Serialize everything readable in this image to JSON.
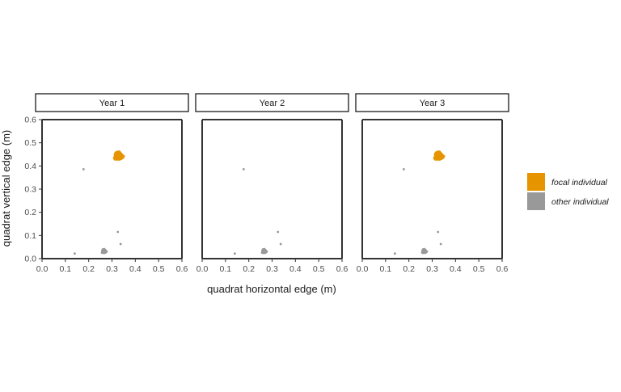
{
  "chart_data": {
    "type": "scatter",
    "panels": [
      "Year 1",
      "Year 2",
      "Year 3"
    ],
    "xlabel": "quadrat horizontal edge (m)",
    "ylabel": "quadrat vertical edge (m)",
    "xlim": [
      0,
      0.6
    ],
    "ylim": [
      0,
      0.6
    ],
    "xticks": [
      "0.0",
      "0.1",
      "0.2",
      "0.3",
      "0.4",
      "0.5",
      "0.6"
    ],
    "yticks": [
      "0.0",
      "0.1",
      "0.2",
      "0.3",
      "0.4",
      "0.5",
      "0.6"
    ],
    "grid": false,
    "legend_position": "right",
    "series": [
      {
        "name": "focal individual",
        "color": "#E69500",
        "points": [
          {
            "panel": "Year 1",
            "x": 0.328,
            "y": 0.443,
            "size": "large"
          },
          {
            "panel": "Year 3",
            "x": 0.328,
            "y": 0.443,
            "size": "large"
          }
        ]
      },
      {
        "name": "other individual",
        "color": "#999999",
        "points": [
          {
            "panel": "Year 1",
            "x": 0.178,
            "y": 0.386,
            "size": "tiny"
          },
          {
            "panel": "Year 1",
            "x": 0.325,
            "y": 0.115,
            "size": "tiny"
          },
          {
            "panel": "Year 1",
            "x": 0.337,
            "y": 0.063,
            "size": "tiny"
          },
          {
            "panel": "Year 1",
            "x": 0.14,
            "y": 0.022,
            "size": "tiny"
          },
          {
            "panel": "Year 1",
            "x": 0.266,
            "y": 0.032,
            "size": "medium"
          },
          {
            "panel": "Year 2",
            "x": 0.178,
            "y": 0.386,
            "size": "tiny"
          },
          {
            "panel": "Year 2",
            "x": 0.325,
            "y": 0.115,
            "size": "tiny"
          },
          {
            "panel": "Year 2",
            "x": 0.337,
            "y": 0.063,
            "size": "tiny"
          },
          {
            "panel": "Year 2",
            "x": 0.14,
            "y": 0.022,
            "size": "tiny"
          },
          {
            "panel": "Year 2",
            "x": 0.266,
            "y": 0.032,
            "size": "medium"
          },
          {
            "panel": "Year 3",
            "x": 0.178,
            "y": 0.386,
            "size": "tiny"
          },
          {
            "panel": "Year 3",
            "x": 0.325,
            "y": 0.115,
            "size": "tiny"
          },
          {
            "panel": "Year 3",
            "x": 0.337,
            "y": 0.063,
            "size": "tiny"
          },
          {
            "panel": "Year 3",
            "x": 0.14,
            "y": 0.022,
            "size": "tiny"
          },
          {
            "panel": "Year 3",
            "x": 0.266,
            "y": 0.032,
            "size": "medium"
          }
        ]
      }
    ]
  }
}
